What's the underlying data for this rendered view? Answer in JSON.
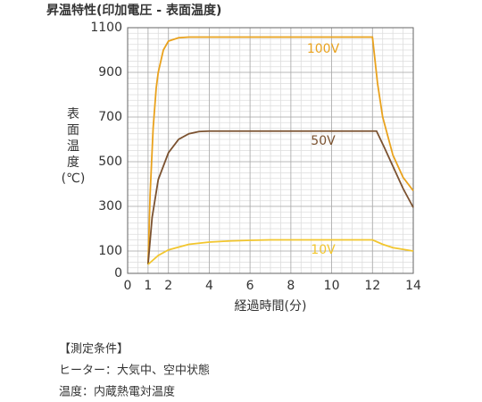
{
  "chart_data": {
    "type": "line",
    "title": "昇温特性(印加電圧 - 表面温度)",
    "y_label": "表面温度(℃)",
    "x_label": "経過時間(分)",
    "xlim": [
      0,
      14
    ],
    "xticks": [
      0,
      1,
      2,
      4,
      6,
      8,
      10,
      12,
      14
    ],
    "ylim": [
      0,
      1100
    ],
    "yticks": [
      0,
      100,
      300,
      500,
      700,
      900,
      1100
    ],
    "grid": true,
    "series": [
      {
        "name": "100V",
        "color": "#e9a21d",
        "x": [
          1,
          1.1,
          1.25,
          1.4,
          1.5,
          1.75,
          2,
          2.5,
          3,
          12,
          12.25,
          12.5,
          13,
          13.5,
          14
        ],
        "values": [
          40,
          350,
          650,
          830,
          900,
          1000,
          1040,
          1055,
          1058,
          1058,
          850,
          700,
          530,
          430,
          370
        ]
      },
      {
        "name": "50V",
        "color": "#7b5230",
        "x": [
          1,
          1.2,
          1.5,
          2,
          2.5,
          3,
          3.5,
          4,
          12.2,
          12.6,
          13,
          13.5,
          14
        ],
        "values": [
          40,
          250,
          420,
          540,
          600,
          625,
          635,
          637,
          637,
          560,
          480,
          380,
          295
        ]
      },
      {
        "name": "10V",
        "color": "#f2c62e",
        "x": [
          1,
          1.5,
          2,
          3,
          4,
          5,
          6,
          7,
          12,
          12.5,
          13,
          14
        ],
        "values": [
          40,
          80,
          105,
          130,
          140,
          145,
          148,
          150,
          150,
          130,
          115,
          100
        ]
      }
    ]
  },
  "notes": [
    "【測定条件】",
    "ヒーター：大気中、空中状態",
    "温度：内蔵熱電対温度"
  ]
}
